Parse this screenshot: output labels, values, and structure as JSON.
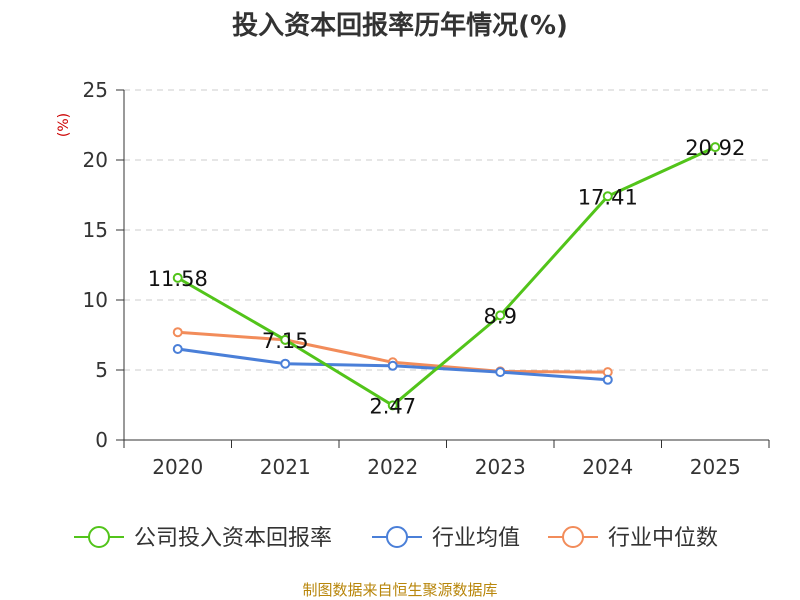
{
  "chart_data": {
    "type": "line",
    "title": "投入资本回报率历年情况(%)",
    "ylabel": "(%)",
    "xlabel": "",
    "categories": [
      "2020",
      "2021",
      "2022",
      "2023",
      "2024",
      "2025"
    ],
    "ylim": [
      0,
      25
    ],
    "yticks": [
      0,
      5,
      10,
      15,
      20,
      25
    ],
    "grid": true,
    "legend_position": "bottom",
    "series": [
      {
        "name": "公司投入资本回报率",
        "color": "#52c41a",
        "values": [
          11.58,
          7.15,
          2.47,
          8.9,
          17.41,
          20.92
        ],
        "labels": [
          "11.58",
          "7.15",
          "2.47",
          "8.9",
          "17.41",
          "20.92"
        ]
      },
      {
        "name": "行业均值",
        "color": "#4a7fd8",
        "values": [
          6.5,
          5.45,
          5.3,
          4.85,
          4.3,
          null
        ]
      },
      {
        "name": "行业中位数",
        "color": "#f28c5a",
        "values": [
          7.7,
          7.15,
          5.55,
          4.9,
          4.85,
          null
        ]
      }
    ],
    "source": "制图数据来自恒生聚源数据库"
  }
}
